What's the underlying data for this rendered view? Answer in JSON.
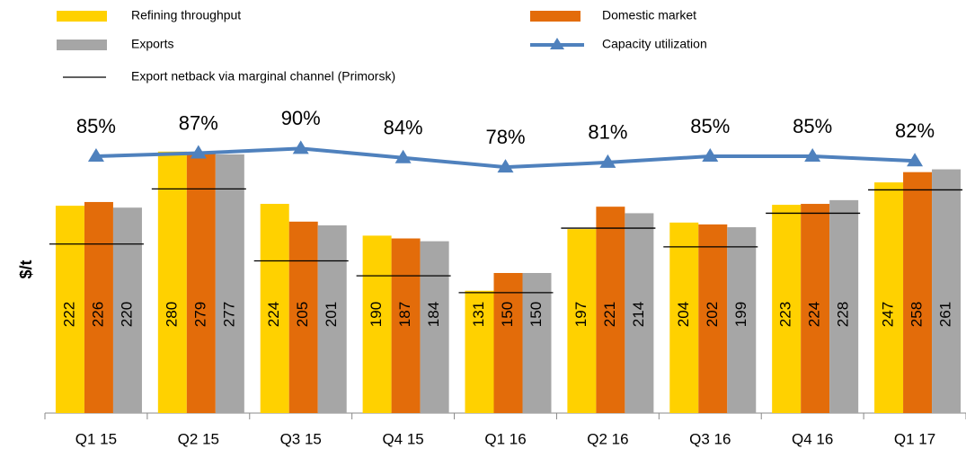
{
  "chart_data": {
    "type": "bar",
    "y_label": "$/t",
    "categories": [
      "Q1 15",
      "Q2 15",
      "Q3 15",
      "Q4 15",
      "Q1 16",
      "Q2 16",
      "Q3 16",
      "Q4 16",
      "Q1 17"
    ],
    "ylim": [
      0,
      400
    ],
    "y2lim": [
      -80,
      160
    ],
    "series": [
      {
        "name": "Refining throughput",
        "type": "bar",
        "color": "#FFD100",
        "values": [
          222,
          280,
          224,
          190,
          131,
          197,
          204,
          223,
          247
        ]
      },
      {
        "name": "Domestic market",
        "type": "bar",
        "color": "#E36C0A",
        "values": [
          226,
          279,
          205,
          187,
          150,
          221,
          202,
          224,
          258
        ]
      },
      {
        "name": "Exports",
        "type": "bar",
        "color": "#A6A6A6",
        "values": [
          220,
          277,
          201,
          184,
          150,
          214,
          199,
          228,
          261
        ]
      },
      {
        "name": "Capacity utilization",
        "type": "line",
        "axis": "y2",
        "color": "#4F81BD",
        "values": [
          85,
          87,
          90,
          84,
          78,
          81,
          85,
          85,
          82
        ],
        "value_labels": [
          "85%",
          "87%",
          "90%",
          "84%",
          "78%",
          "81%",
          "85%",
          "85%",
          "82%"
        ]
      },
      {
        "name": "Export netback via marginal channel (Primorsk)",
        "type": "segment",
        "color": "#000000",
        "values": [
          181,
          240,
          163,
          147,
          129,
          198,
          178,
          214,
          239
        ]
      }
    ]
  }
}
